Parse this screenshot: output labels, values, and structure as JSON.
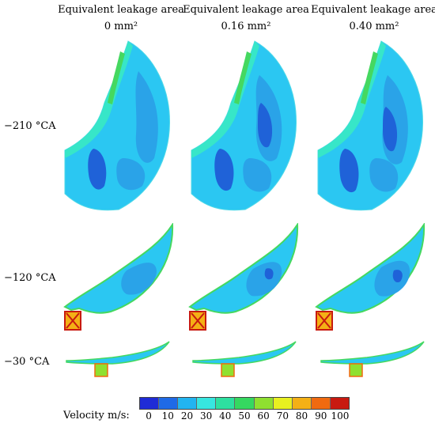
{
  "columns": [
    {
      "title": "Equivalent leakage area",
      "value": "0 mm²"
    },
    {
      "title": "Equivalent leakage area",
      "value": "0.16 mm²"
    },
    {
      "title": "Equivalent leakage area",
      "value": "0.40 mm²"
    }
  ],
  "rows": [
    "−210 °CA",
    "−120 °CA",
    "−30 °CA"
  ],
  "legend": {
    "title": "Velocity m/s:",
    "ticks": [
      "0",
      "10",
      "20",
      "30",
      "40",
      "50",
      "60",
      "70",
      "80",
      "90",
      "100"
    ],
    "colors": [
      "#1f2bd6",
      "#1f6ae6",
      "#22b4f0",
      "#37e6e0",
      "#2de0a0",
      "#35d860",
      "#8fe030",
      "#e8f020",
      "#f4b015",
      "#f06a10",
      "#c81a10"
    ]
  },
  "field_colors": {
    "base": "#2bc7f2",
    "mid": "#2aa3e8",
    "low": "#1f62d8",
    "edge": "#37e6c8",
    "green": "#45d860"
  }
}
